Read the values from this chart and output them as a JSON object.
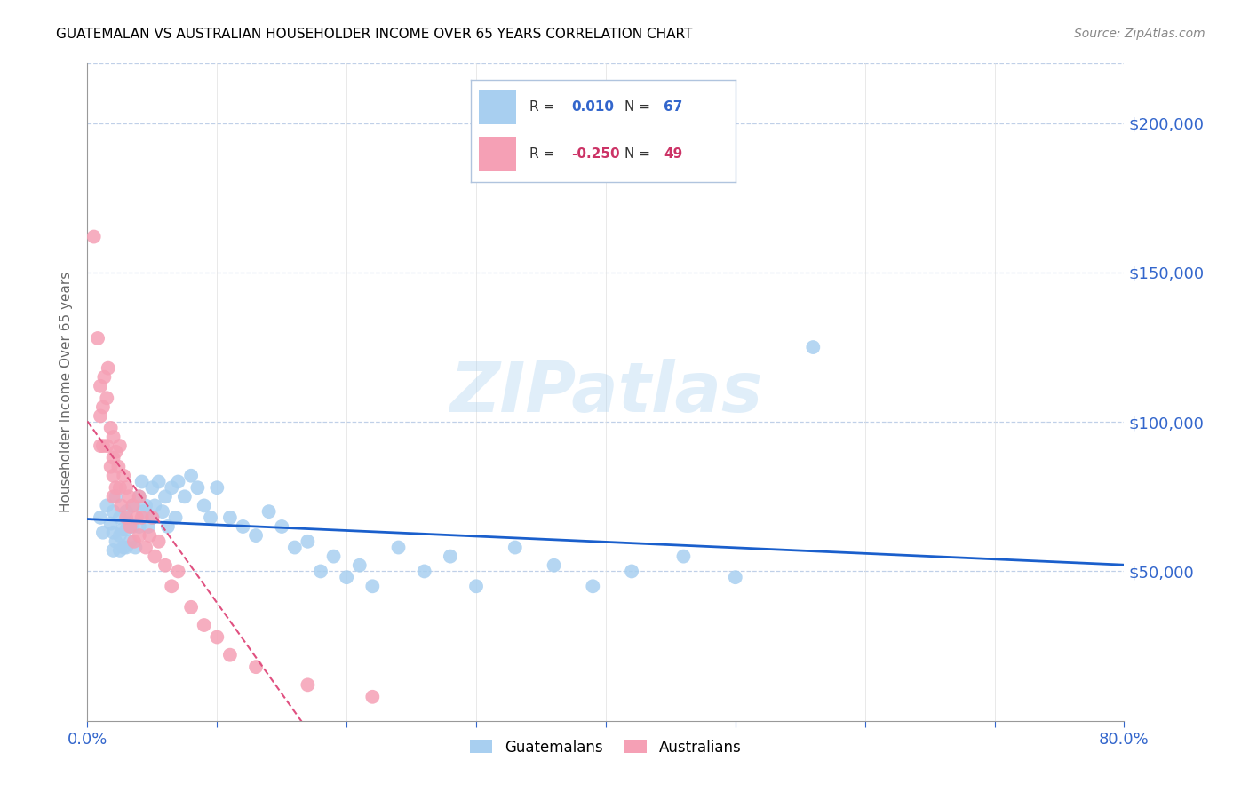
{
  "title": "GUATEMALAN VS AUSTRALIAN HOUSEHOLDER INCOME OVER 65 YEARS CORRELATION CHART",
  "source": "Source: ZipAtlas.com",
  "ylabel": "Householder Income Over 65 years",
  "ytick_labels": [
    "$50,000",
    "$100,000",
    "$150,000",
    "$200,000"
  ],
  "ytick_values": [
    50000,
    100000,
    150000,
    200000
  ],
  "ylim": [
    0,
    220000
  ],
  "xlim": [
    0.0,
    0.8
  ],
  "legend_guatemalans": "Guatemalans",
  "legend_australians": "Australians",
  "R_guatemalans": "0.010",
  "N_guatemalans": "67",
  "R_australians": "-0.250",
  "N_australians": "49",
  "color_guatemalans": "#a8cff0",
  "color_australians": "#f5a0b5",
  "color_trend_guatemalans": "#1a5fcc",
  "color_trend_australians": "#e05080",
  "guatemalans_x": [
    0.01,
    0.012,
    0.015,
    0.018,
    0.02,
    0.02,
    0.02,
    0.022,
    0.022,
    0.025,
    0.025,
    0.025,
    0.027,
    0.028,
    0.03,
    0.03,
    0.03,
    0.032,
    0.033,
    0.035,
    0.035,
    0.037,
    0.04,
    0.04,
    0.042,
    0.043,
    0.045,
    0.047,
    0.05,
    0.05,
    0.052,
    0.055,
    0.058,
    0.06,
    0.062,
    0.065,
    0.068,
    0.07,
    0.075,
    0.08,
    0.085,
    0.09,
    0.095,
    0.1,
    0.11,
    0.12,
    0.13,
    0.14,
    0.15,
    0.16,
    0.17,
    0.18,
    0.19,
    0.2,
    0.21,
    0.22,
    0.24,
    0.26,
    0.28,
    0.3,
    0.33,
    0.36,
    0.39,
    0.42,
    0.46,
    0.5,
    0.56
  ],
  "guatemalans_y": [
    68000,
    63000,
    72000,
    66000,
    70000,
    63000,
    57000,
    75000,
    60000,
    68000,
    62000,
    57000,
    64000,
    58000,
    70000,
    64000,
    58000,
    66000,
    60000,
    72000,
    65000,
    58000,
    75000,
    65000,
    80000,
    70000,
    72000,
    65000,
    78000,
    68000,
    72000,
    80000,
    70000,
    75000,
    65000,
    78000,
    68000,
    80000,
    75000,
    82000,
    78000,
    72000,
    68000,
    78000,
    68000,
    65000,
    62000,
    70000,
    65000,
    58000,
    60000,
    50000,
    55000,
    48000,
    52000,
    45000,
    58000,
    50000,
    55000,
    45000,
    58000,
    52000,
    45000,
    50000,
    55000,
    48000,
    125000
  ],
  "australians_x": [
    0.005,
    0.008,
    0.01,
    0.01,
    0.01,
    0.012,
    0.012,
    0.013,
    0.015,
    0.015,
    0.016,
    0.018,
    0.018,
    0.02,
    0.02,
    0.02,
    0.02,
    0.022,
    0.022,
    0.024,
    0.025,
    0.025,
    0.026,
    0.028,
    0.03,
    0.03,
    0.032,
    0.033,
    0.035,
    0.036,
    0.038,
    0.04,
    0.04,
    0.042,
    0.045,
    0.048,
    0.05,
    0.052,
    0.055,
    0.06,
    0.065,
    0.07,
    0.08,
    0.09,
    0.1,
    0.11,
    0.13,
    0.17,
    0.22
  ],
  "australians_y": [
    162000,
    128000,
    112000,
    102000,
    92000,
    105000,
    92000,
    115000,
    108000,
    92000,
    118000,
    98000,
    85000,
    95000,
    88000,
    82000,
    75000,
    90000,
    78000,
    85000,
    92000,
    78000,
    72000,
    82000,
    78000,
    68000,
    75000,
    65000,
    72000,
    60000,
    68000,
    75000,
    62000,
    68000,
    58000,
    62000,
    68000,
    55000,
    60000,
    52000,
    45000,
    50000,
    38000,
    32000,
    28000,
    22000,
    18000,
    12000,
    8000
  ]
}
